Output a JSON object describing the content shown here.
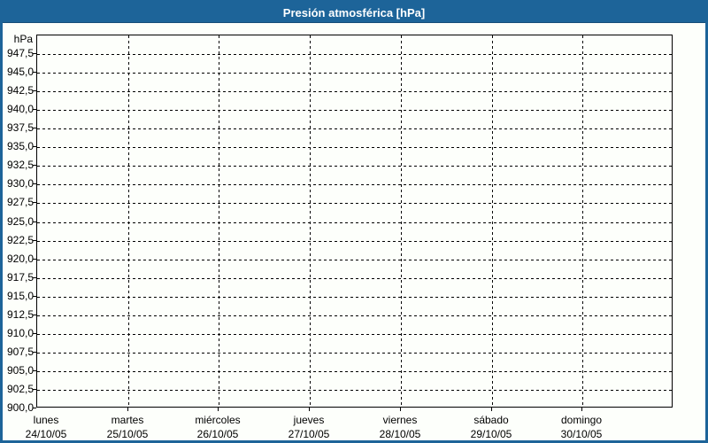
{
  "window": {
    "title": "Presión atmosférica [hPa]"
  },
  "colors": {
    "titlebar_bg": "#1d6499",
    "titlebar_text": "#ffffff",
    "window_border": "#1d6499",
    "chart_bg": "#fdfffb",
    "grid": "#000000",
    "text": "#000000"
  },
  "chart_data": {
    "type": "line",
    "title": "Presión atmosférica [hPa]",
    "ylabel": "hPa",
    "xlabel": "",
    "ylim": [
      900,
      950
    ],
    "y_tick_step": 2.5,
    "y_tick_labels": [
      "947,5",
      "945,0",
      "942,5",
      "940,0",
      "937,5",
      "935,0",
      "932,5",
      "930,0",
      "927,5",
      "925,0",
      "922,5",
      "920,0",
      "917,5",
      "915,0",
      "912,5",
      "910,0",
      "907,5",
      "905,0",
      "902,5",
      "900,0"
    ],
    "x_categories": [
      {
        "day": "lunes",
        "date": "24/10/05"
      },
      {
        "day": "martes",
        "date": "25/10/05"
      },
      {
        "day": "miércoles",
        "date": "26/10/05"
      },
      {
        "day": "jueves",
        "date": "27/10/05"
      },
      {
        "day": "viernes",
        "date": "28/10/05"
      },
      {
        "day": "sábado",
        "date": "29/10/05"
      },
      {
        "day": "domingo",
        "date": "30/10/05"
      }
    ],
    "series": [],
    "grid_style": "dashed",
    "legend_position": "none"
  }
}
